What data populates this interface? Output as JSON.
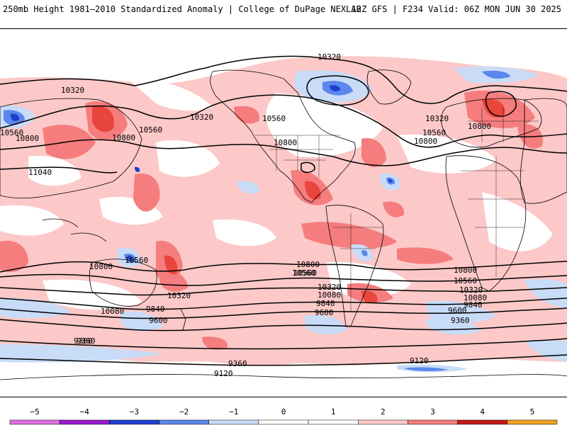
{
  "header": {
    "left_title": "250mb Height 1981–2010 Standardized Anomaly | College of DuPage NEXLAB",
    "right_title": "12Z GFS | F234 Valid: 06Z MON JUN 30 2025"
  },
  "colors": {
    "pos1": "#fcc8c8",
    "pos2": "#f57d7d",
    "pos3": "#e8453c",
    "pos4": "#c41a1a",
    "neg1": "#c8dcf8",
    "neg2": "#5b86ec",
    "neg3": "#1f3fd0",
    "contour": "#000000",
    "coast": "#000000",
    "land_fill": "#ffffff"
  },
  "contour_labels": [
    "10320",
    "10320",
    "10320",
    "10320",
    "10560",
    "10560",
    "10560",
    "10560",
    "10560",
    "10560",
    "10800",
    "10800",
    "10800",
    "10800",
    "10800",
    "10800",
    "11040",
    "10800",
    "10560",
    "10320",
    "10080",
    "9840",
    "9600",
    "9360",
    "10800",
    "10560",
    "10320",
    "10080",
    "9840",
    "9600",
    "9360",
    "10320",
    "10080",
    "9840",
    "9600",
    "9360",
    "9360",
    "9120",
    "9120"
  ],
  "colorbar": {
    "ticks": [
      "−5",
      "−4",
      "−3",
      "−2",
      "−1",
      "0",
      "1",
      "2",
      "3",
      "4",
      "5"
    ],
    "colors": [
      "#e070e0",
      "#9a1ad0",
      "#1f3fd0",
      "#5b86ec",
      "#c8dcf8",
      "#ffffff",
      "#ffffff",
      "#fcc8c8",
      "#f57d7d",
      "#c41a1a",
      "#f0a020"
    ],
    "min": -5.5,
    "max": 5.5
  }
}
